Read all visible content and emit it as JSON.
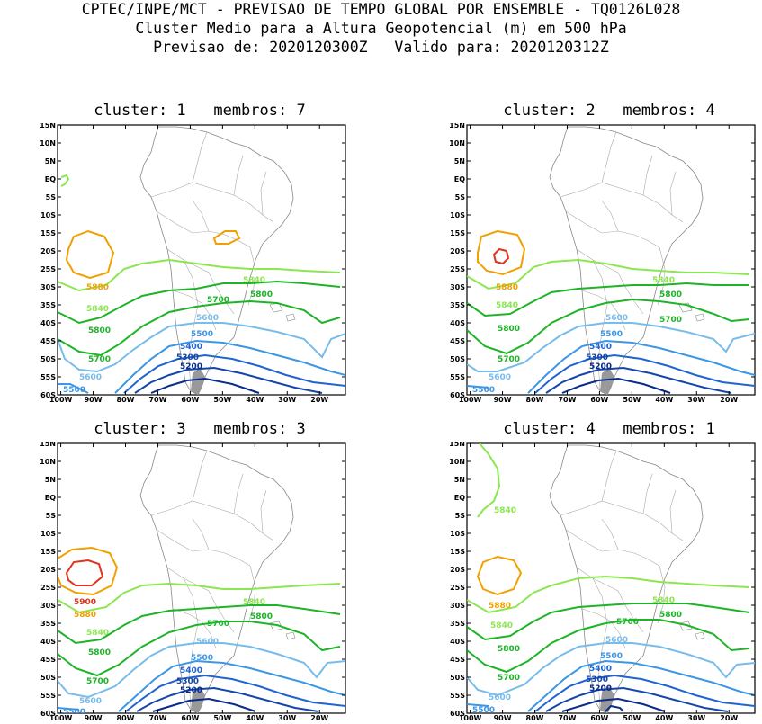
{
  "header": {
    "line1": "CPTEC/INPE/MCT - PREVISAO DE TEMPO GLOBAL POR ENSEMBLE - TQ0126L028",
    "line2": "Cluster Medio para a Altura Geopotencial (m) em 500 hPa",
    "line3": "Previsao de: 2020120300Z   Valido para: 2020120312Z"
  },
  "axes": {
    "lat_labels": [
      "15N",
      "10N",
      "5N",
      "EQ",
      "5S",
      "10S",
      "15S",
      "20S",
      "25S",
      "30S",
      "35S",
      "40S",
      "45S",
      "50S",
      "55S",
      "60S"
    ],
    "lon_labels": [
      "100W",
      "90W",
      "80W",
      "70W",
      "60W",
      "50W",
      "40W",
      "30W",
      "20W"
    ],
    "lat_range": [
      -60,
      15
    ],
    "lon_range": [
      -101,
      -12
    ]
  },
  "colors": {
    "c5900": "#e0321e",
    "c5880": "#f0a000",
    "c5840": "#8ce650",
    "c5800": "#1eb428",
    "c5700": "#1eb428",
    "c5600": "#78bcec",
    "c5500": "#3c96e6",
    "c5400": "#2064d2",
    "c5300": "#1446aa",
    "c5200": "#0a2d8c"
  },
  "panels": [
    {
      "title": "cluster: 1   membros: 7",
      "labels": [
        "5880",
        "5840",
        "5800",
        "5700",
        "5600",
        "5500",
        "5400",
        "5300",
        "5200",
        "5840",
        "5800",
        "5700",
        "5600",
        "5500"
      ]
    },
    {
      "title": "cluster: 2   membros: 4",
      "labels": [
        "5880",
        "5840",
        "5800",
        "5700",
        "5600",
        "5500",
        "5400",
        "5300",
        "5200",
        "5840",
        "5800",
        "5700",
        "5600",
        "5500"
      ]
    },
    {
      "title": "cluster: 3   membros: 3",
      "labels": [
        "5900",
        "5880",
        "5840",
        "5800",
        "5700",
        "5600",
        "5500",
        "5400",
        "5300",
        "5200",
        "5840",
        "5800",
        "5700",
        "5600",
        "5500"
      ]
    },
    {
      "title": "cluster: 4   membros: 1",
      "labels": [
        "5880",
        "5840",
        "5800",
        "5700",
        "5600",
        "5500",
        "5400",
        "5300",
        "5200",
        "5840",
        "5800",
        "5700",
        "5600",
        "5500",
        "5840"
      ]
    }
  ]
}
